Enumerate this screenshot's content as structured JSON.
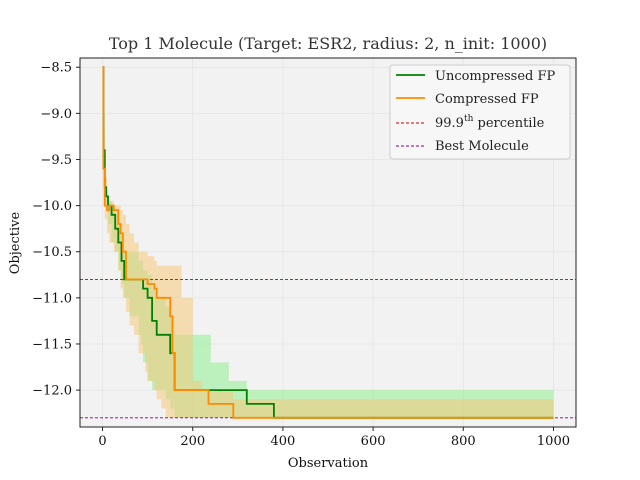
{
  "chart_data": {
    "type": "line",
    "title": "Top 1 Molecule (Target: ESR2, radius: 2, n_init: 1000)",
    "xlabel": "Observation",
    "ylabel": "Objective",
    "xlim": [
      -50,
      1050
    ],
    "ylim": [
      -12.4,
      -8.4
    ],
    "xticks": [
      0,
      200,
      400,
      600,
      800,
      1000
    ],
    "yticks": [
      -8.5,
      -9.0,
      -9.5,
      -10.0,
      -10.5,
      -11.0,
      -11.5,
      -12.0
    ],
    "xtick_labels": [
      "0",
      "200",
      "400",
      "600",
      "800",
      "1000"
    ],
    "ytick_labels": [
      "−8.5",
      "−9.0",
      "−9.5",
      "−10.0",
      "−10.5",
      "−11.0",
      "−11.5",
      "−12.0"
    ],
    "grid": true,
    "legend": "top-right",
    "series": [
      {
        "name": "Uncompressed FP",
        "color": "#008000",
        "band_color": "#90ee90",
        "x": [
          0,
          2,
          5,
          8,
          12,
          20,
          28,
          35,
          42,
          48,
          60,
          80,
          85,
          90,
          100,
          110,
          120,
          140,
          150,
          160,
          165,
          240,
          280,
          310,
          320,
          370,
          380,
          1000
        ],
        "y": [
          -8.5,
          -9.4,
          -9.8,
          -9.9,
          -10.0,
          -10.1,
          -10.25,
          -10.4,
          -10.6,
          -10.8,
          -10.8,
          -10.8,
          -10.8,
          -10.9,
          -11.0,
          -11.25,
          -11.4,
          -11.4,
          -11.6,
          -12.0,
          -12.0,
          -12.0,
          -12.0,
          -12.0,
          -12.15,
          -12.15,
          -12.3,
          -12.3
        ],
        "upper": [
          -8.5,
          -9.0,
          -9.6,
          -9.85,
          -9.95,
          -10.0,
          -10.1,
          -10.2,
          -10.3,
          -10.5,
          -10.5,
          -10.6,
          -10.6,
          -10.7,
          -10.75,
          -10.9,
          -11.0,
          -11.1,
          -11.2,
          -11.4,
          -11.4,
          -11.7,
          -11.9,
          -11.9,
          -12.0,
          -12.0,
          -12.0,
          -12.3
        ],
        "lower": [
          -8.5,
          -9.8,
          -10.0,
          -10.05,
          -10.2,
          -10.4,
          -10.5,
          -10.7,
          -10.85,
          -11.0,
          -11.2,
          -11.4,
          -11.5,
          -11.7,
          -11.9,
          -12.0,
          -12.0,
          -12.1,
          -12.2,
          -12.3,
          -12.3,
          -12.3,
          -12.3,
          -12.3,
          -12.3,
          -12.3,
          -12.3,
          -12.3
        ]
      },
      {
        "name": "Compressed FP",
        "color": "#ff8c00",
        "band_color": "#f5c97a",
        "x": [
          0,
          2,
          5,
          10,
          15,
          25,
          35,
          40,
          45,
          52,
          60,
          70,
          80,
          95,
          100,
          115,
          120,
          130,
          140,
          150,
          155,
          160,
          175,
          200,
          220,
          235,
          285,
          290,
          1000
        ],
        "y": [
          -8.5,
          -9.6,
          -10.0,
          -10.05,
          -10.0,
          -10.05,
          -10.2,
          -10.3,
          -10.5,
          -10.8,
          -10.8,
          -10.8,
          -10.8,
          -10.8,
          -10.85,
          -10.9,
          -11.0,
          -11.0,
          -11.0,
          -11.2,
          -11.6,
          -12.0,
          -12.0,
          -12.0,
          -12.0,
          -12.15,
          -12.15,
          -12.3,
          -12.3
        ],
        "upper": [
          -8.5,
          -9.2,
          -9.7,
          -9.9,
          -9.95,
          -10.0,
          -10.0,
          -10.05,
          -10.1,
          -10.2,
          -10.3,
          -10.4,
          -10.5,
          -10.5,
          -10.55,
          -10.6,
          -10.65,
          -10.65,
          -10.65,
          -10.65,
          -10.65,
          -10.65,
          -11.0,
          -11.9,
          -12.0,
          -12.0,
          -12.0,
          -12.1,
          -12.3
        ],
        "lower": [
          -8.5,
          -10.0,
          -10.15,
          -10.3,
          -10.4,
          -10.5,
          -10.7,
          -10.9,
          -11.0,
          -11.15,
          -11.3,
          -11.4,
          -11.6,
          -11.8,
          -11.9,
          -12.0,
          -12.1,
          -12.2,
          -12.3,
          -12.3,
          -12.3,
          -12.3,
          -12.3,
          -12.3,
          -12.3,
          -12.3,
          -12.3,
          -12.3,
          -12.3
        ]
      }
    ],
    "reference_lines": [
      {
        "name": "99.9",
        "name_sup": "th",
        "name_suffix": " percentile",
        "y": -10.8,
        "color": "#cc0000",
        "style": "dashed"
      },
      {
        "name": "Best Molecule",
        "y": -12.3,
        "color": "#800080",
        "style": "dashed"
      }
    ]
  }
}
